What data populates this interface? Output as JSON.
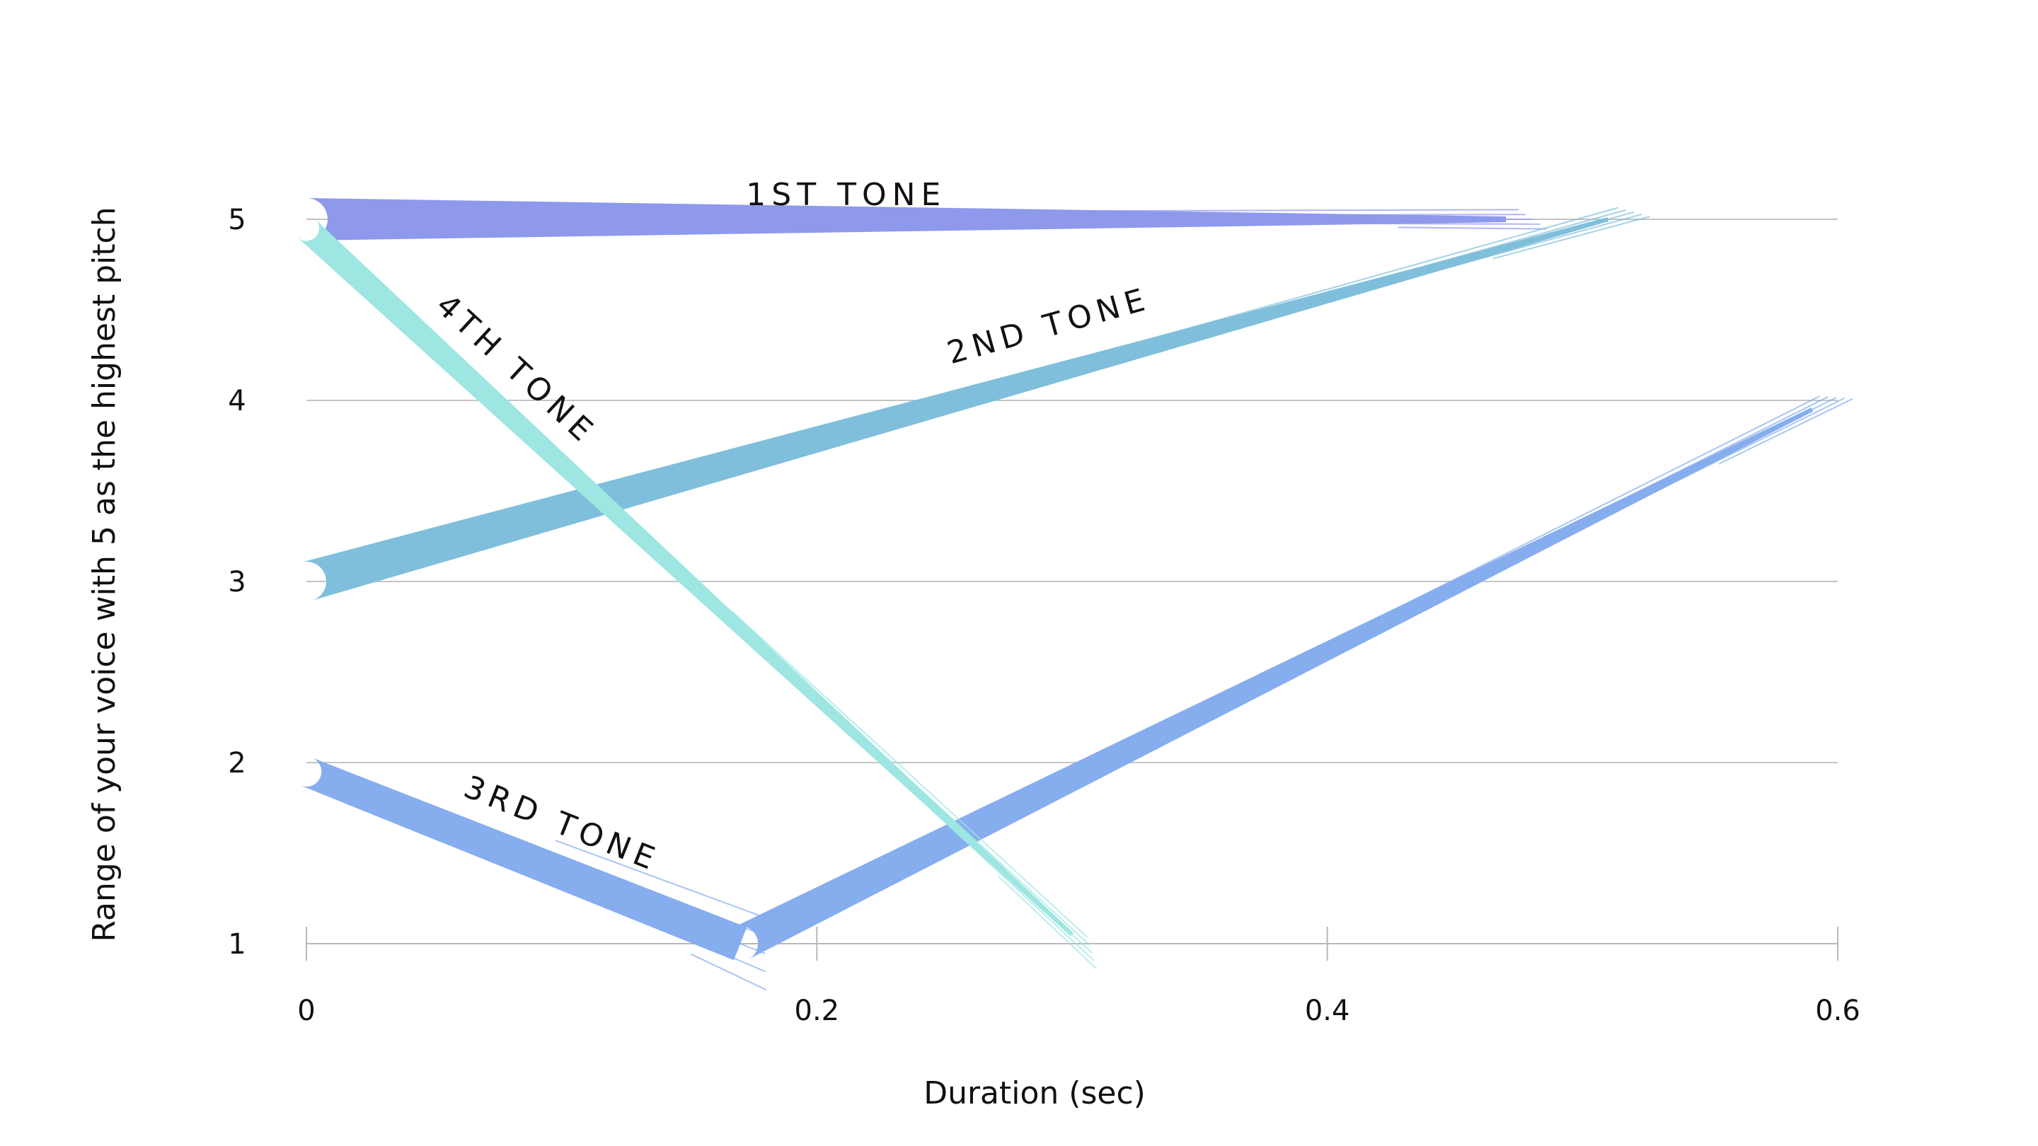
{
  "chart_data": {
    "type": "line",
    "title": "",
    "xlabel": "Duration (sec)",
    "ylabel": "Range of your voice with 5 as the highest pitch",
    "xlim": [
      0,
      0.6
    ],
    "ylim": [
      1,
      5
    ],
    "x_ticks": [
      "0",
      "0.2",
      "0.4",
      "0.6"
    ],
    "x_tick_values": [
      0,
      0.2,
      0.4,
      0.6
    ],
    "y_ticks": [
      "1",
      "2",
      "3",
      "4",
      "5"
    ],
    "y_tick_values": [
      1,
      2,
      3,
      4,
      5
    ],
    "grid": true,
    "series": [
      {
        "name": "1ST TONE",
        "color": "#8e99ec",
        "points": [
          [
            0.0,
            5.0
          ],
          [
            0.47,
            5.0
          ]
        ]
      },
      {
        "name": "2ND TONE",
        "color": "#7fbfdb",
        "points": [
          [
            0.0,
            3.0
          ],
          [
            0.51,
            5.0
          ]
        ]
      },
      {
        "name": "3RD TONE",
        "color": "#86adee",
        "points": [
          [
            0.0,
            1.95
          ],
          [
            0.17,
            1.0
          ],
          [
            0.59,
            3.95
          ]
        ]
      },
      {
        "name": "4TH TONE",
        "color": "#9de6e2",
        "points": [
          [
            0.0,
            4.95
          ],
          [
            0.3,
            1.05
          ]
        ]
      }
    ]
  }
}
